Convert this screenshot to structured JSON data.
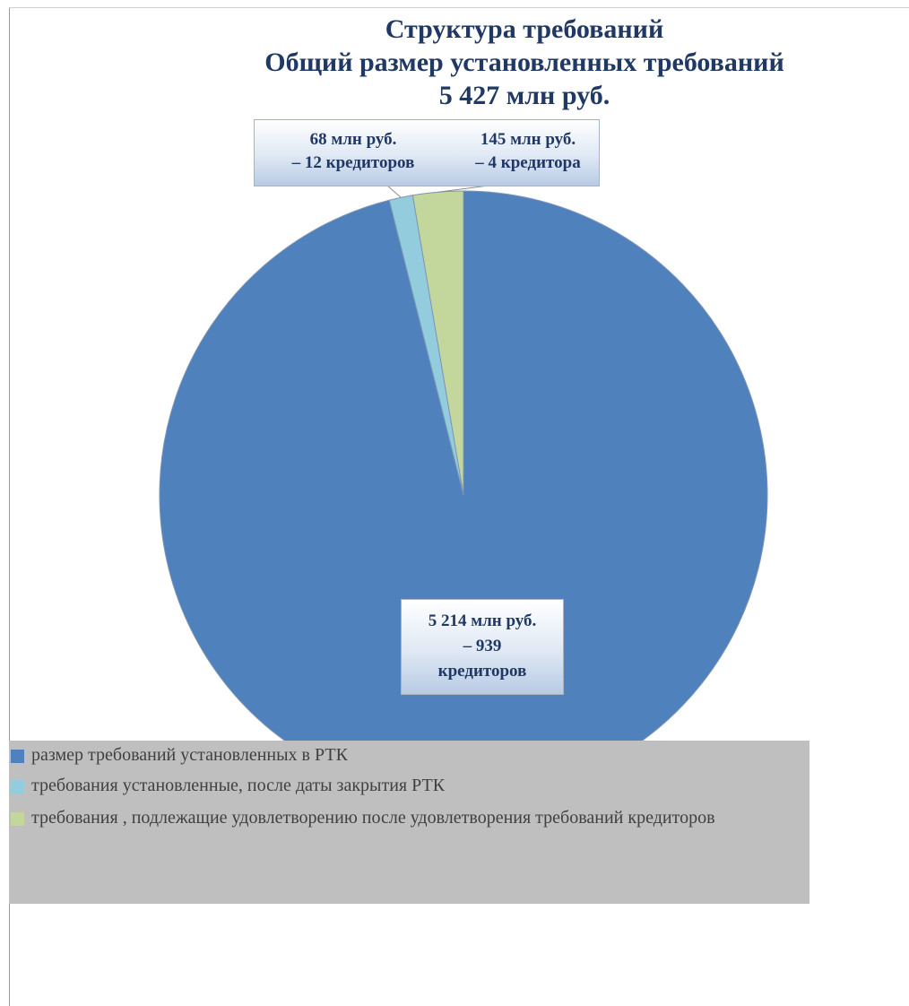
{
  "title": {
    "line1": "Структура требований",
    "line2": "Общий размер установленных требований",
    "line3": "5 427 млн руб."
  },
  "labels": {
    "small_1_line1": "68 млн руб.",
    "small_1_line2": "– 12  кредиторов",
    "small_2_line1": "145 млн руб.",
    "small_2_line2": "– 4 кредитора",
    "main_line1": "5 214 млн руб.",
    "main_line2": "– 939",
    "main_line3": "кредиторов"
  },
  "legend": [
    {
      "label": "размер требований установленных в РТК",
      "color": "#4f81bd"
    },
    {
      "label": "требования установленные, после даты закрытия РТК",
      "color": "#93cddd"
    },
    {
      "label": "требования , подлежащие удовлетворению после удовлетворения требований кредиторов",
      "color": "#c3d69b"
    }
  ],
  "chart_data": {
    "type": "pie",
    "title": "Структура требований Общий размер установленных требований 5 427 млн руб.",
    "unit": "млн руб.",
    "slices": [
      {
        "name": "размер требований установленных в РТК",
        "value": 5214,
        "creditors": 939,
        "color": "#4f81bd"
      },
      {
        "name": "требования установленные, после даты закрытия РТК",
        "value": 68,
        "creditors": 12,
        "color": "#93cddd"
      },
      {
        "name": "требования , подлежащие удовлетворению после удовлетворения требований кредиторов",
        "value": 145,
        "creditors": 4,
        "color": "#c3d69b"
      }
    ],
    "legend_position": "bottom"
  }
}
